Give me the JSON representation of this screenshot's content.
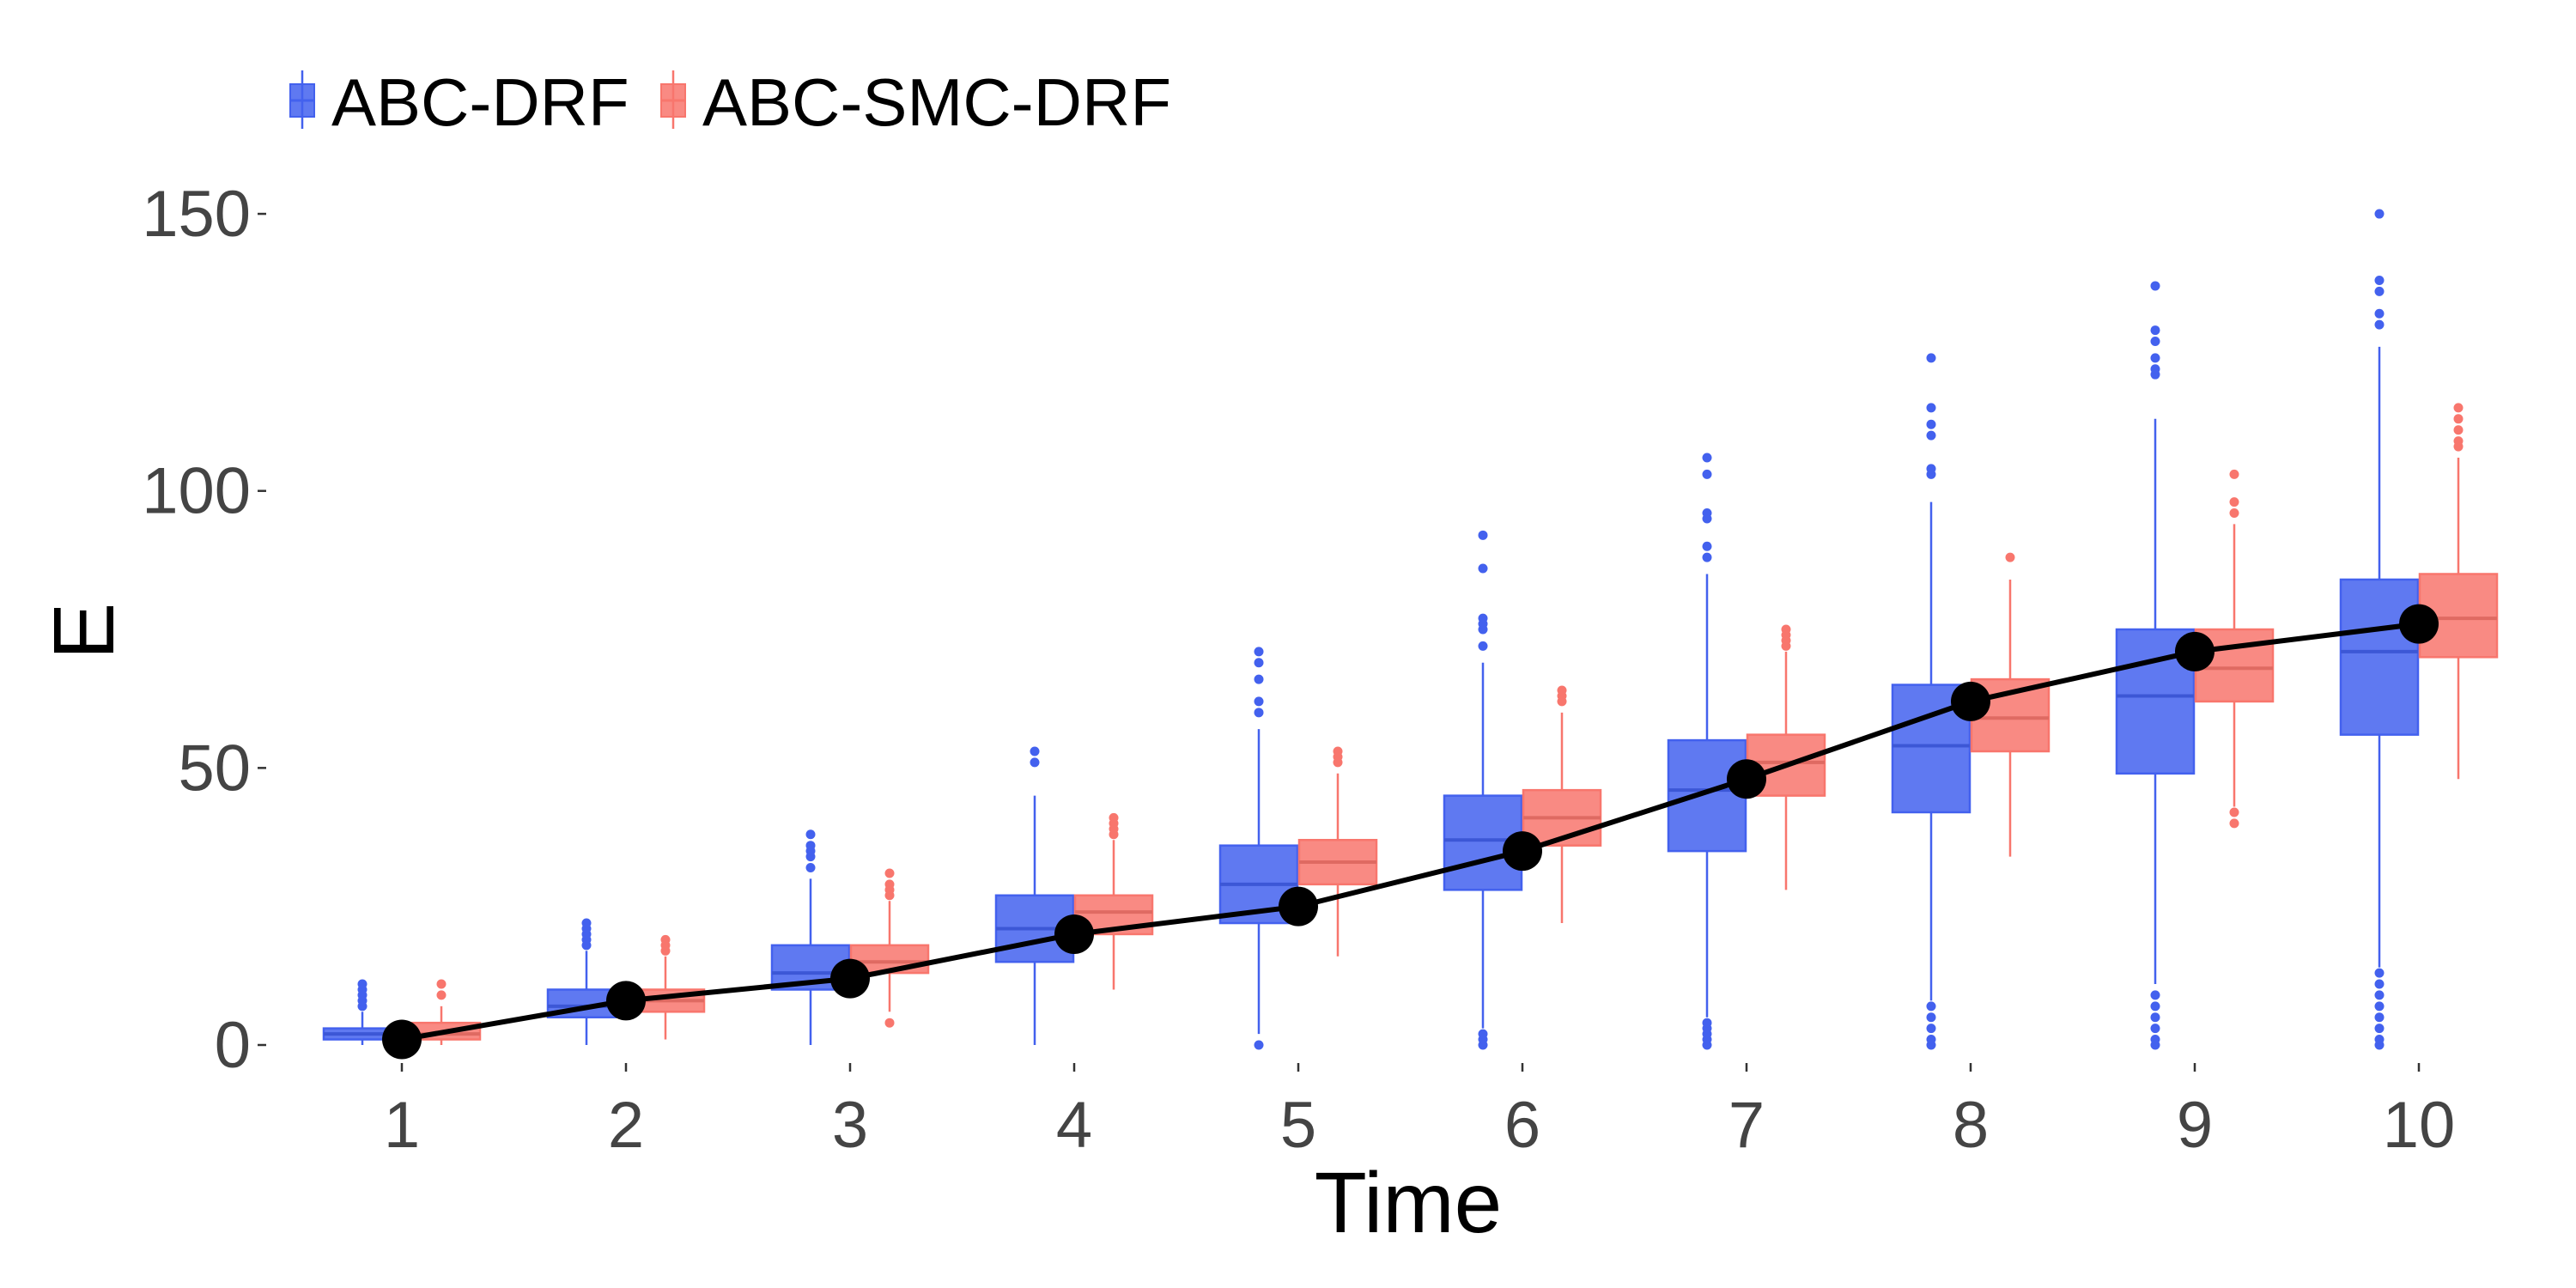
{
  "chart_data": {
    "type": "box",
    "title": "",
    "xlabel": "Time",
    "ylabel": "E",
    "ylim": [
      -5,
      158
    ],
    "grid": false,
    "legend_position": "top-left",
    "categories": [
      "1",
      "2",
      "3",
      "4",
      "5",
      "6",
      "7",
      "8",
      "9",
      "10"
    ],
    "yticks": [
      "0",
      "50",
      "100",
      "150"
    ],
    "series": [
      {
        "name": "ABC-DRF",
        "color": "#4361ee",
        "boxes": [
          {
            "whislo": 0,
            "q1": 1,
            "med": 2,
            "q3": 3,
            "whishi": 6,
            "fliers": [
              7,
              8,
              9,
              10,
              11
            ]
          },
          {
            "whislo": 0,
            "q1": 5,
            "med": 7,
            "q3": 10,
            "whishi": 17,
            "fliers": [
              18,
              19,
              20,
              21,
              22
            ]
          },
          {
            "whislo": 0,
            "q1": 10,
            "med": 13,
            "q3": 18,
            "whishi": 30,
            "fliers": [
              32,
              34,
              35,
              36,
              38
            ]
          },
          {
            "whislo": 0,
            "q1": 15,
            "med": 21,
            "q3": 27,
            "whishi": 45,
            "fliers": [
              51,
              53
            ]
          },
          {
            "whislo": 2,
            "q1": 22,
            "med": 29,
            "q3": 36,
            "whishi": 57,
            "fliers": [
              0,
              60,
              62,
              66,
              69,
              71
            ]
          },
          {
            "whislo": 3,
            "q1": 28,
            "med": 37,
            "q3": 45,
            "whishi": 69,
            "fliers": [
              0,
              1,
              2,
              72,
              75,
              76,
              77,
              86,
              92
            ]
          },
          {
            "whislo": 5,
            "q1": 35,
            "med": 46,
            "q3": 55,
            "whishi": 85,
            "fliers": [
              0,
              1,
              2,
              3,
              4,
              88,
              90,
              95,
              96,
              103,
              106
            ]
          },
          {
            "whislo": 8,
            "q1": 42,
            "med": 54,
            "q3": 65,
            "whishi": 98,
            "fliers": [
              0,
              1,
              3,
              5,
              7,
              103,
              104,
              110,
              112,
              115,
              124
            ]
          },
          {
            "whislo": 11,
            "q1": 49,
            "med": 63,
            "q3": 75,
            "whishi": 113,
            "fliers": [
              0,
              1,
              3,
              5,
              7,
              9,
              121,
              122,
              124,
              127,
              129,
              137
            ]
          },
          {
            "whislo": 14,
            "q1": 56,
            "med": 71,
            "q3": 84,
            "whishi": 126,
            "fliers": [
              0,
              1,
              3,
              5,
              7,
              9,
              11,
              13,
              130,
              132,
              136,
              138,
              150
            ]
          }
        ]
      },
      {
        "name": "ABC-SMC-DRF",
        "color": "#f8766d",
        "boxes": [
          {
            "whislo": 0,
            "q1": 1,
            "med": 2,
            "q3": 4,
            "whishi": 7,
            "fliers": [
              9,
              11
            ]
          },
          {
            "whislo": 1,
            "q1": 6,
            "med": 8,
            "q3": 10,
            "whishi": 16,
            "fliers": [
              17,
              18,
              19
            ]
          },
          {
            "whislo": 6,
            "q1": 13,
            "med": 15,
            "q3": 18,
            "whishi": 26,
            "fliers": [
              4,
              27,
              28,
              29,
              31
            ]
          },
          {
            "whislo": 10,
            "q1": 20,
            "med": 24,
            "q3": 27,
            "whishi": 37,
            "fliers": [
              38,
              39,
              40,
              41
            ]
          },
          {
            "whislo": 16,
            "q1": 29,
            "med": 33,
            "q3": 37,
            "whishi": 49,
            "fliers": [
              51,
              52,
              53
            ]
          },
          {
            "whislo": 22,
            "q1": 36,
            "med": 41,
            "q3": 46,
            "whishi": 60,
            "fliers": [
              62,
              63,
              64
            ]
          },
          {
            "whislo": 28,
            "q1": 45,
            "med": 51,
            "q3": 56,
            "whishi": 71,
            "fliers": [
              72,
              73,
              74,
              75
            ]
          },
          {
            "whislo": 34,
            "q1": 53,
            "med": 59,
            "q3": 66,
            "whishi": 84,
            "fliers": [
              88
            ]
          },
          {
            "whislo": 43,
            "q1": 62,
            "med": 68,
            "q3": 75,
            "whishi": 94,
            "fliers": [
              40,
              42,
              96,
              98,
              103
            ]
          },
          {
            "whislo": 48,
            "q1": 70,
            "med": 77,
            "q3": 85,
            "whishi": 106,
            "fliers": [
              108,
              109,
              111,
              113,
              115
            ]
          }
        ]
      },
      {
        "name": "",
        "type": "line",
        "color": "#000000",
        "values": [
          1,
          8,
          12,
          20,
          25,
          35,
          48,
          62,
          71,
          76
        ]
      }
    ]
  }
}
